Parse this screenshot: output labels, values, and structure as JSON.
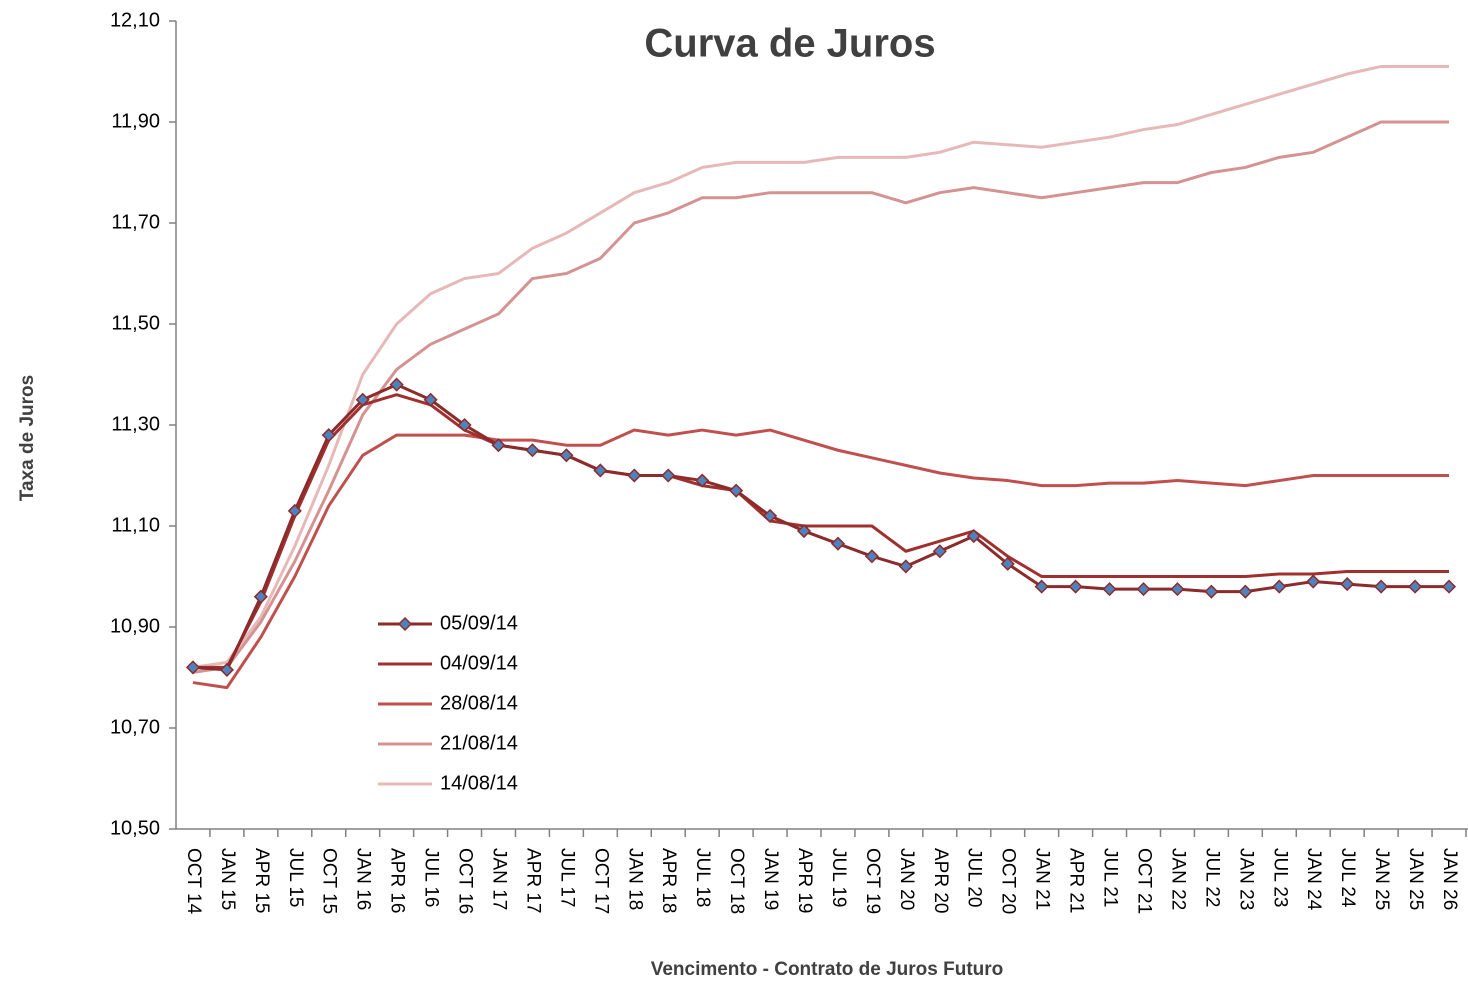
{
  "chart_data": {
    "type": "line",
    "title": "Curva de Juros",
    "x_label": "Vencimento - Contrato de Juros Futuro",
    "y_label": "Taxa de Juros",
    "categories": [
      "OCT 14",
      "JAN 15",
      "APR 15",
      "JUL 15",
      "OCT 15",
      "JAN 16",
      "APR 16",
      "JUL 16",
      "OCT 16",
      "JAN 17",
      "APR 17",
      "JUL 17",
      "OCT 17",
      "JAN 18",
      "APR 18",
      "JUL 18",
      "OCT 18",
      "JAN 19",
      "APR 19",
      "JUL 19",
      "OCT 19",
      "JAN 20",
      "APR 20",
      "JUL 20",
      "OCT 20",
      "JAN 21",
      "APR 21",
      "JUL 21",
      "OCT 21",
      "JAN 22",
      "JUL 22",
      "JAN 23",
      "JUL 23",
      "JAN 24",
      "JUL 24",
      "JAN 25",
      "JAN 25",
      "JAN 26"
    ],
    "series": [
      {
        "name": "05/09/14",
        "color": "#8b2b2b",
        "marker": "diamond",
        "marker_color": "#4f81bd",
        "values": [
          10.82,
          10.815,
          10.96,
          11.13,
          11.28,
          11.35,
          11.38,
          11.35,
          11.3,
          11.26,
          11.25,
          11.24,
          11.21,
          11.2,
          11.2,
          11.19,
          11.17,
          11.12,
          11.09,
          11.065,
          11.04,
          11.02,
          11.05,
          11.08,
          11.025,
          10.98,
          10.98,
          10.975,
          10.975,
          10.975,
          10.97,
          10.97,
          10.98,
          10.99,
          10.985,
          10.98,
          10.98,
          10.98
        ]
      },
      {
        "name": "04/09/14",
        "color": "#a0302e",
        "values": [
          10.82,
          10.82,
          10.95,
          11.12,
          11.27,
          11.34,
          11.36,
          11.34,
          11.29,
          11.26,
          11.25,
          11.24,
          11.21,
          11.2,
          11.2,
          11.18,
          11.17,
          11.11,
          11.1,
          11.1,
          11.1,
          11.05,
          11.07,
          11.09,
          11.04,
          11.0,
          11.0,
          11.0,
          11.0,
          11.0,
          11.0,
          11.0,
          11.005,
          11.005,
          11.01,
          11.01,
          11.01,
          11.01
        ]
      },
      {
        "name": "28/08/14",
        "color": "#c0504d",
        "values": [
          10.79,
          10.78,
          10.88,
          11.0,
          11.14,
          11.24,
          11.28,
          11.28,
          11.28,
          11.27,
          11.27,
          11.26,
          11.26,
          11.29,
          11.28,
          11.29,
          11.28,
          11.29,
          11.27,
          11.25,
          11.235,
          11.22,
          11.205,
          11.195,
          11.19,
          11.18,
          11.18,
          11.185,
          11.185,
          11.19,
          11.185,
          11.18,
          11.19,
          11.2,
          11.2,
          11.2,
          11.2,
          11.2
        ]
      },
      {
        "name": "21/08/14",
        "color": "#d49392",
        "values": [
          10.81,
          10.82,
          10.91,
          11.03,
          11.17,
          11.32,
          11.41,
          11.46,
          11.49,
          11.52,
          11.59,
          11.6,
          11.63,
          11.7,
          11.72,
          11.75,
          11.75,
          11.76,
          11.76,
          11.76,
          11.76,
          11.74,
          11.76,
          11.77,
          11.76,
          11.75,
          11.76,
          11.77,
          11.78,
          11.78,
          11.8,
          11.81,
          11.83,
          11.84,
          11.87,
          11.9,
          11.9,
          11.9
        ]
      },
      {
        "name": "14/08/14",
        "color": "#e6b9b8",
        "values": [
          10.82,
          10.83,
          10.92,
          11.06,
          11.22,
          11.4,
          11.5,
          11.56,
          11.59,
          11.6,
          11.65,
          11.68,
          11.72,
          11.76,
          11.78,
          11.81,
          11.82,
          11.82,
          11.82,
          11.83,
          11.83,
          11.83,
          11.84,
          11.86,
          11.855,
          11.85,
          11.86,
          11.87,
          11.885,
          11.895,
          11.915,
          11.935,
          11.955,
          11.975,
          11.995,
          12.01,
          12.01,
          12.01
        ]
      }
    ],
    "ylim": [
      10.5,
      12.1
    ],
    "yticks": [
      {
        "value": 10.5,
        "label": "10,50"
      },
      {
        "value": 10.7,
        "label": "10,70"
      },
      {
        "value": 10.9,
        "label": "10,90"
      },
      {
        "value": 11.1,
        "label": "11,10"
      },
      {
        "value": 11.3,
        "label": "11,30"
      },
      {
        "value": 11.5,
        "label": "11,50"
      },
      {
        "value": 11.7,
        "label": "11,70"
      },
      {
        "value": 11.9,
        "label": "11,90"
      },
      {
        "value": 12.1,
        "label": "12,10"
      }
    ],
    "grid": false
  }
}
